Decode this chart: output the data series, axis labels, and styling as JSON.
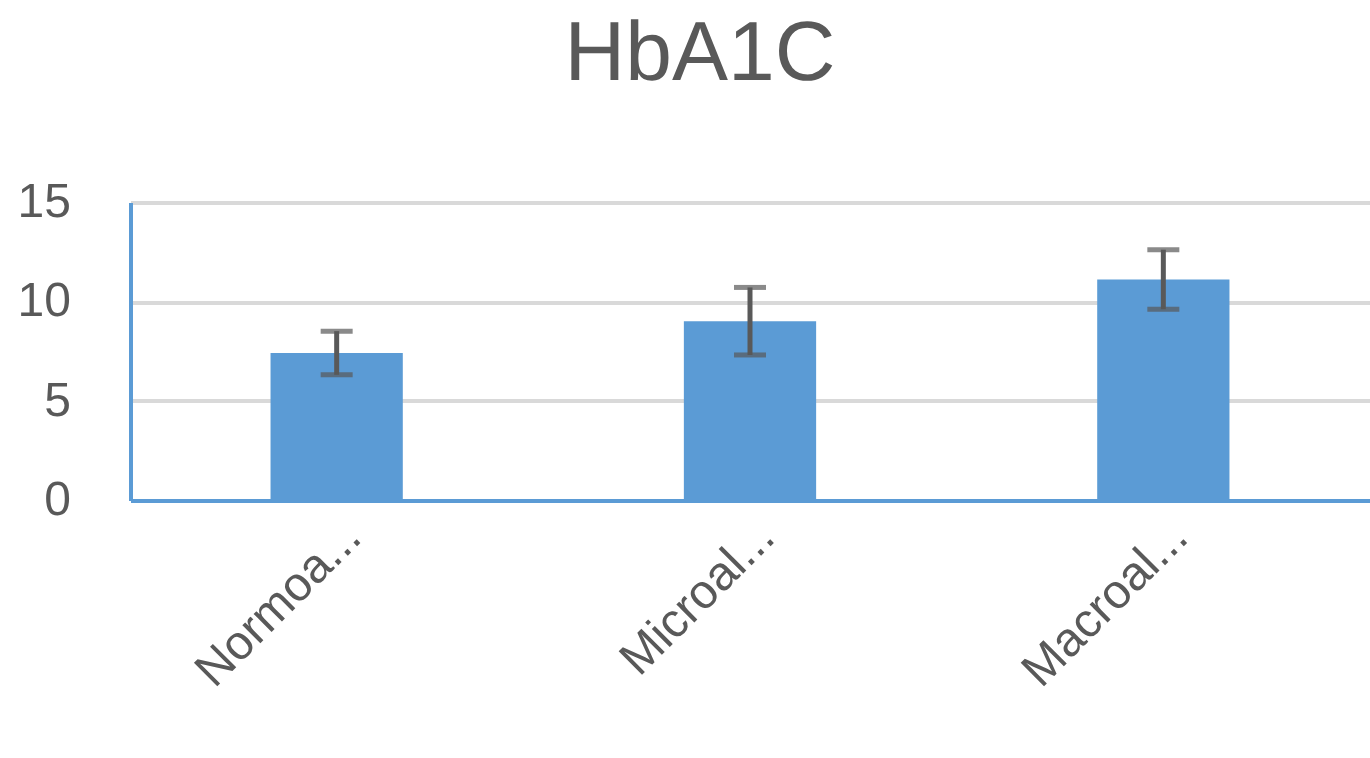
{
  "chart_data": {
    "type": "bar",
    "title": "HbA1C",
    "categories": [
      "Normoa...",
      "Microal...",
      "Macroal..."
    ],
    "values": [
      7.4,
      9.0,
      11.1
    ],
    "errors": [
      1.1,
      1.7,
      1.5
    ],
    "color": "#5b9bd5",
    "ylim": [
      0,
      15
    ],
    "yticks": [
      0,
      5,
      10,
      15
    ],
    "grid": "y"
  }
}
